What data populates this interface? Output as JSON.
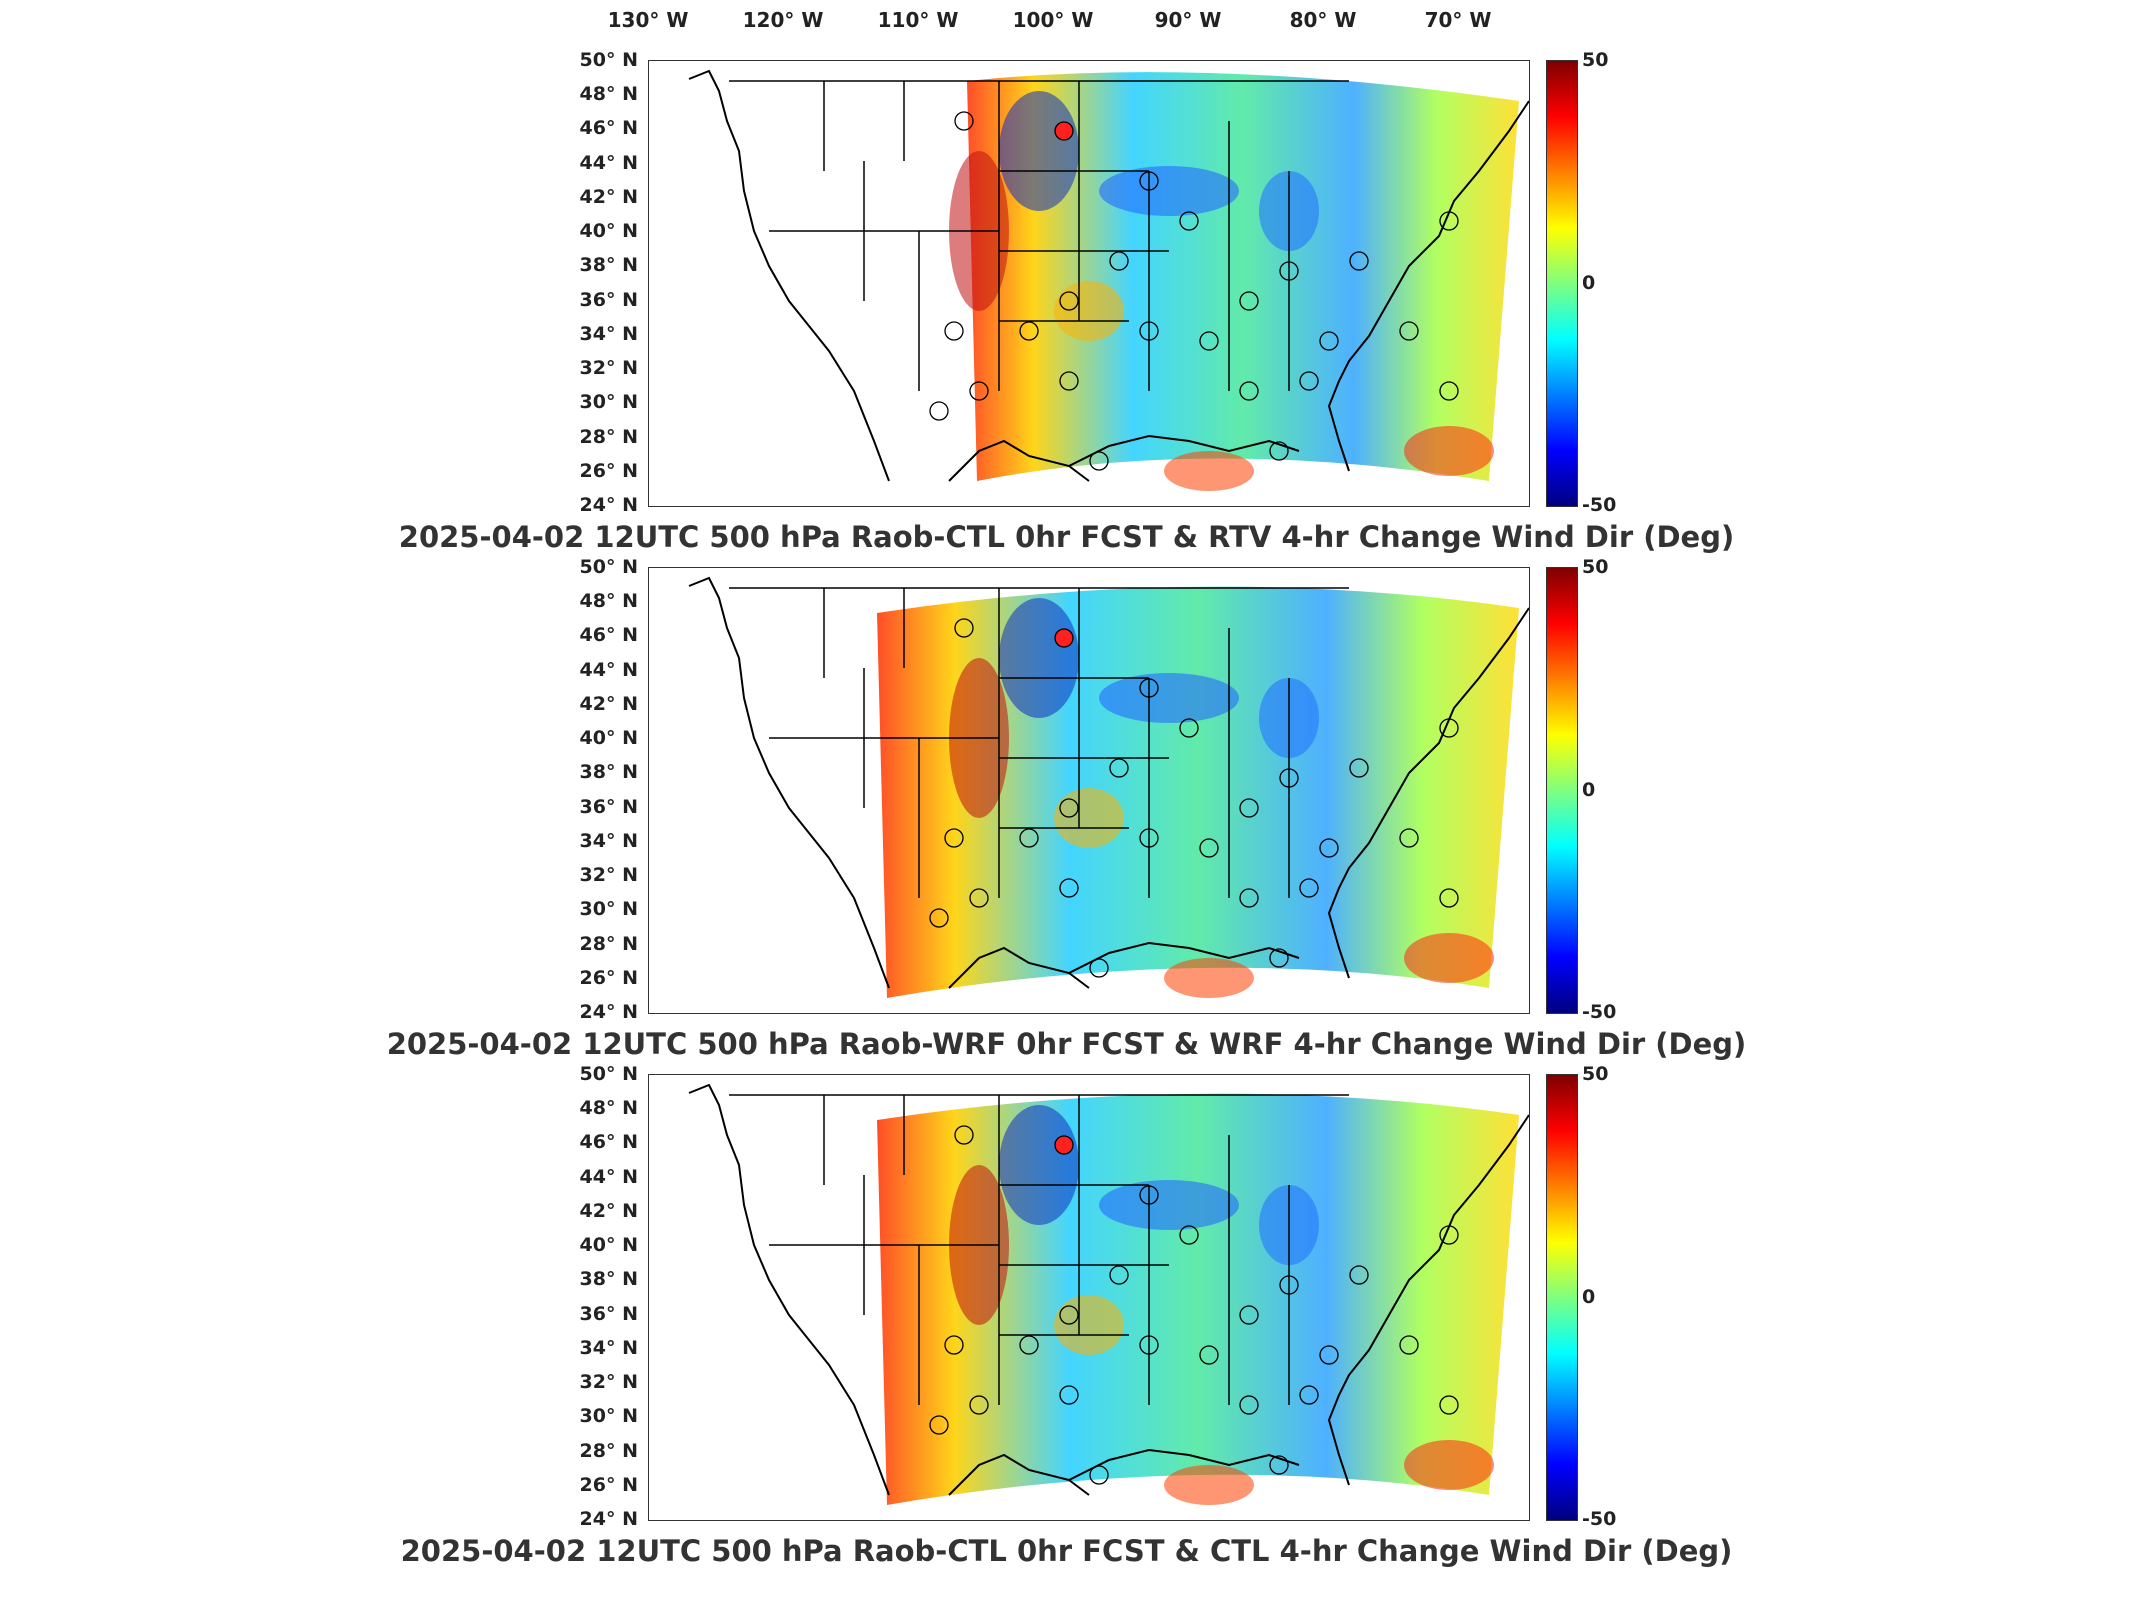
{
  "top_lon_labels": [
    "130° W",
    "120° W",
    "110° W",
    "100° W",
    "90° W",
    "80° W",
    "70° W"
  ],
  "lat_labels": [
    "50° N",
    "48° N",
    "46° N",
    "44° N",
    "42° N",
    "40° N",
    "38° N",
    "36° N",
    "34° N",
    "32° N",
    "30° N",
    "28° N",
    "26° N",
    "24° N"
  ],
  "colorbar": {
    "max_label": "50",
    "mid_label": "0",
    "min_label": "-50",
    "colors": [
      "#7f0000",
      "#ff0000",
      "#ff7f00",
      "#ffff00",
      "#7fff7f",
      "#00ffff",
      "#007fff",
      "#0000ff",
      "#00007f"
    ]
  },
  "panels": [
    {
      "title": "2025-04-02 12UTC 500 hPa Raob-CTL 0hr FCST & RTV 4-hr Change Wind Dir (Deg)"
    },
    {
      "title": "2025-04-02 12UTC 500 hPa Raob-WRF 0hr FCST & WRF 4-hr Change Wind Dir (Deg)"
    },
    {
      "title": "2025-04-02 12UTC 500 hPa Raob-CTL 0hr FCST & CTL 4-hr Change Wind Dir (Deg)"
    }
  ]
}
